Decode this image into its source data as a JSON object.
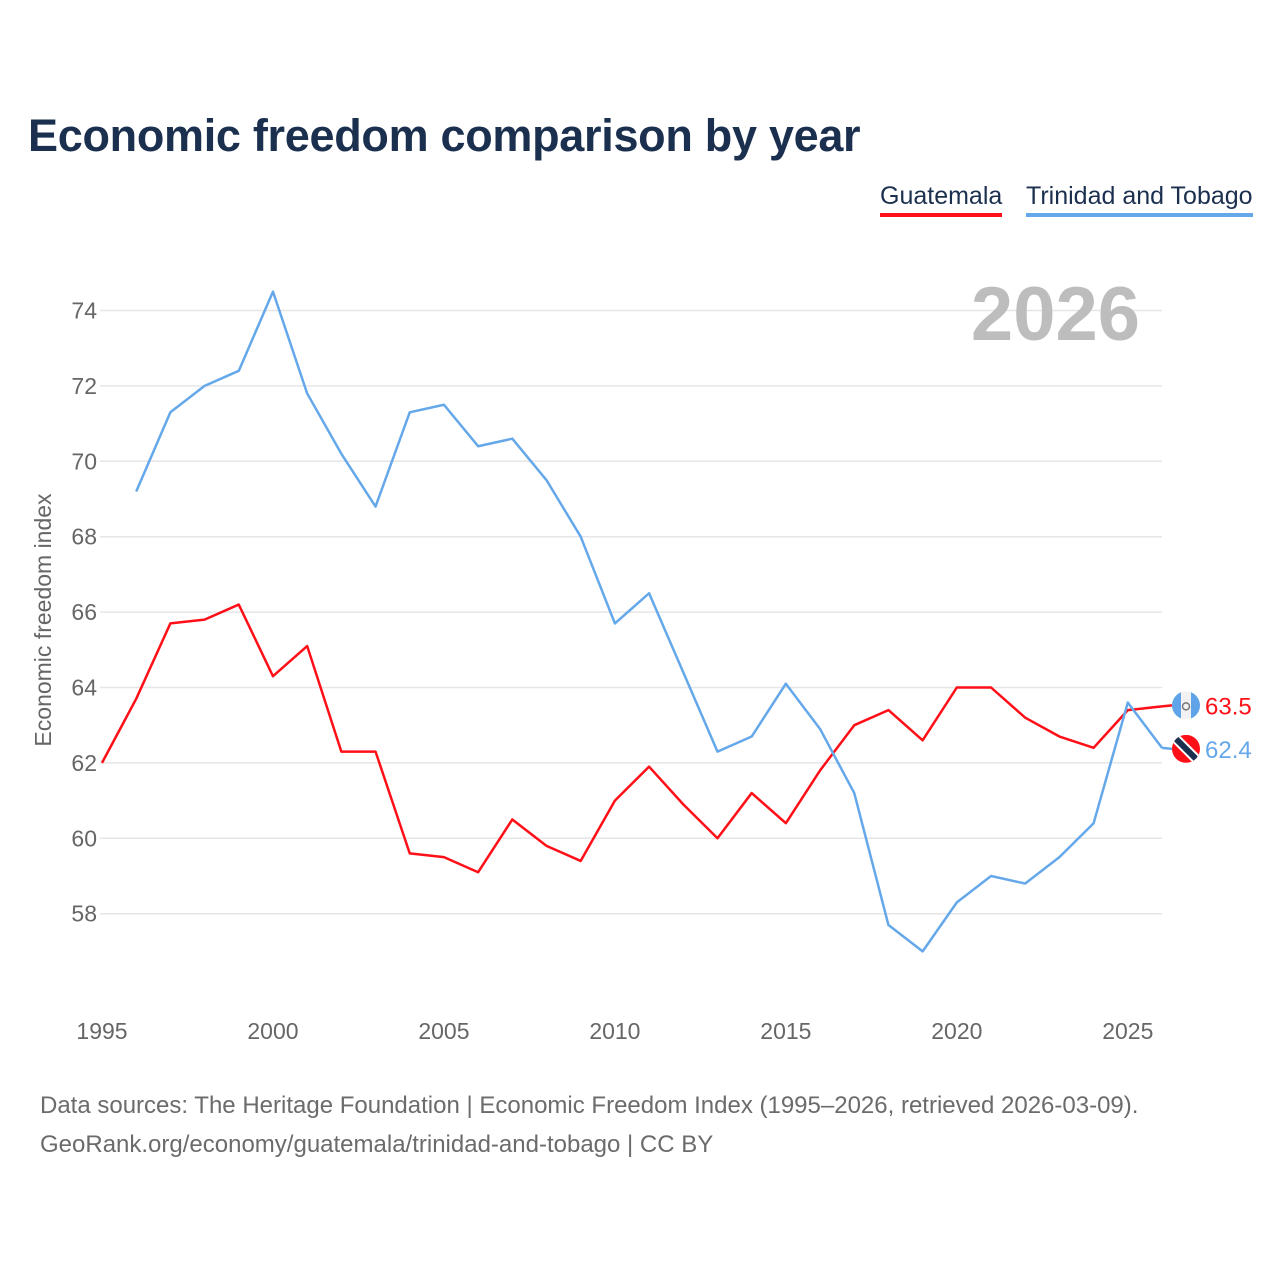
{
  "title": "Economic freedom comparison by year",
  "legend": [
    "Guatemala",
    "Trinidad and Tobago"
  ],
  "year_watermark": "2026",
  "footer": {
    "line1": "Data sources: The Heritage Foundation | Economic Freedom Index (1995–2026, retrieved 2026-03-09).",
    "line2": "GeoRank.org/economy/guatemala/trinidad-and-tobago | CC BY"
  },
  "colors": {
    "guatemala": "#ff0f17",
    "trinidad": "#65a8ea",
    "title": "#1b2f4e"
  },
  "chart_data": {
    "type": "line",
    "title": "Economic freedom comparison by year",
    "xlabel": "",
    "ylabel": "Economic freedom index",
    "xlim": [
      1995,
      2026
    ],
    "ylim": [
      56.5,
      75
    ],
    "x_ticks": [
      1995,
      2000,
      2005,
      2010,
      2015,
      2020,
      2025
    ],
    "y_ticks": [
      58,
      60,
      62,
      64,
      66,
      68,
      70,
      72,
      74
    ],
    "grid": true,
    "legend_position": "top-right",
    "series": [
      {
        "name": "Guatemala",
        "color": "#ff0f17",
        "end_label": "63.5",
        "x": [
          1995,
          1996,
          1997,
          1998,
          1999,
          2000,
          2001,
          2002,
          2003,
          2004,
          2005,
          2006,
          2007,
          2008,
          2009,
          2010,
          2011,
          2012,
          2013,
          2014,
          2015,
          2016,
          2017,
          2018,
          2019,
          2020,
          2021,
          2022,
          2023,
          2024,
          2025,
          2026
        ],
        "values": [
          62.0,
          63.7,
          65.7,
          65.8,
          66.2,
          64.3,
          65.1,
          62.3,
          62.3,
          59.6,
          59.5,
          59.1,
          60.5,
          59.8,
          59.4,
          61.0,
          61.9,
          60.9,
          60.0,
          61.2,
          60.4,
          61.8,
          63.0,
          63.4,
          62.6,
          64.0,
          64.0,
          63.2,
          62.7,
          62.4,
          63.4,
          63.5
        ]
      },
      {
        "name": "Trinidad and Tobago",
        "color": "#65a8ea",
        "end_label": "62.4",
        "x": [
          1996,
          1997,
          1998,
          1999,
          2000,
          2001,
          2002,
          2003,
          2004,
          2005,
          2006,
          2007,
          2008,
          2009,
          2010,
          2011,
          2012,
          2013,
          2014,
          2015,
          2016,
          2017,
          2018,
          2019,
          2020,
          2021,
          2022,
          2023,
          2024,
          2025,
          2026
        ],
        "values": [
          69.2,
          71.3,
          72.0,
          72.4,
          74.5,
          71.8,
          70.2,
          68.8,
          71.3,
          71.5,
          70.4,
          70.6,
          69.5,
          68.0,
          65.7,
          66.5,
          64.4,
          62.3,
          62.7,
          64.1,
          62.9,
          61.2,
          57.7,
          57.0,
          58.3,
          59.0,
          58.8,
          59.5,
          60.4,
          63.6,
          62.4
        ]
      }
    ]
  }
}
